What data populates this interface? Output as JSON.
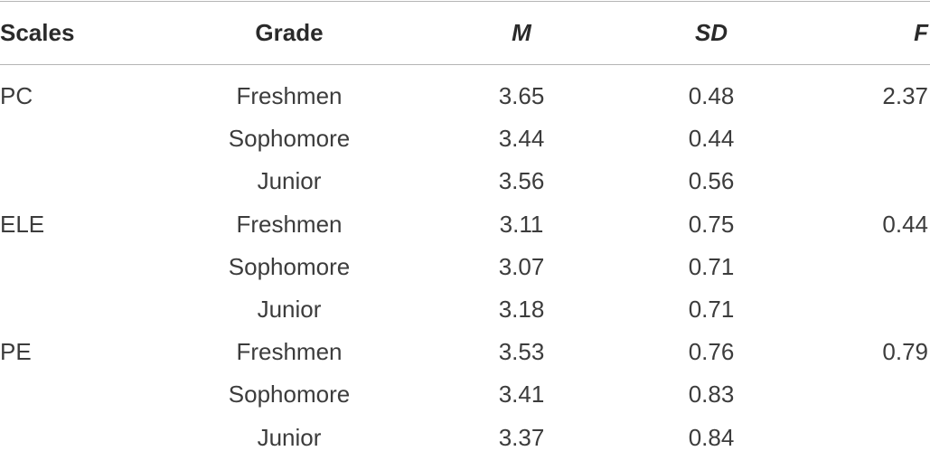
{
  "table": {
    "header": [
      "Scales",
      "Grade",
      "M",
      "SD",
      "F"
    ],
    "groups": [
      {
        "scale": "PC",
        "F": "2.37",
        "rows": [
          {
            "grade": "Freshmen",
            "M": "3.65",
            "SD": "0.48"
          },
          {
            "grade": "Sophomore",
            "M": "3.44",
            "SD": "0.44"
          },
          {
            "grade": "Junior",
            "M": "3.56",
            "SD": "0.56"
          }
        ]
      },
      {
        "scale": "ELE",
        "F": "0.44",
        "rows": [
          {
            "grade": "Freshmen",
            "M": "3.11",
            "SD": "0.75"
          },
          {
            "grade": "Sophomore",
            "M": "3.07",
            "SD": "0.71"
          },
          {
            "grade": "Junior",
            "M": "3.18",
            "SD": "0.71"
          }
        ]
      },
      {
        "scale": "PE",
        "F": "0.79",
        "rows": [
          {
            "grade": "Freshmen",
            "M": "3.53",
            "SD": "0.76"
          },
          {
            "grade": "Sophomore",
            "M": "3.41",
            "SD": "0.83"
          },
          {
            "grade": "Junior",
            "M": "3.37",
            "SD": "0.84"
          }
        ]
      }
    ]
  }
}
